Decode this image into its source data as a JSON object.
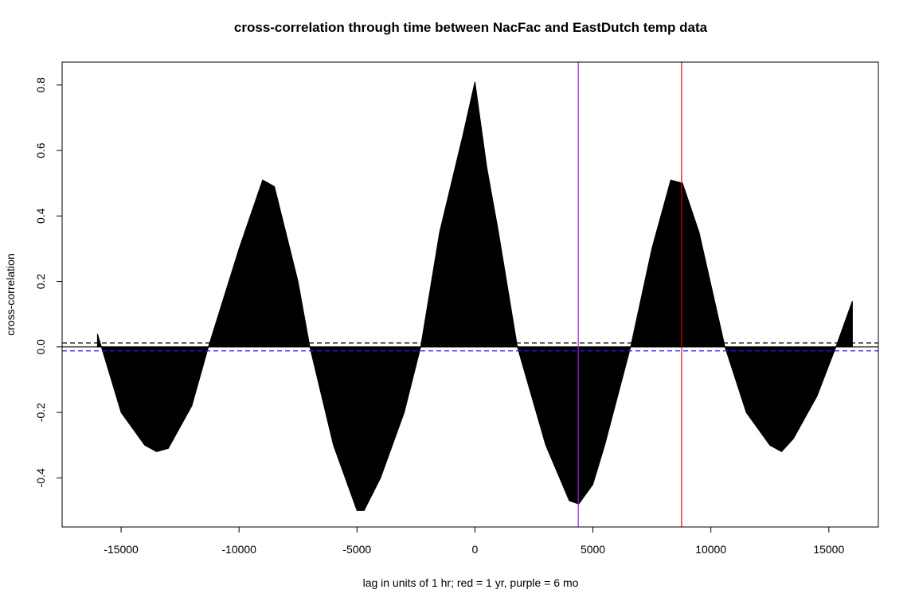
{
  "chart_data": {
    "type": "bar",
    "title": "cross-correlation through time between NacFac and EastDutch temp data",
    "xlabel": "lag in units of 1 hr; red = 1 yr, purple = 6 mo",
    "ylabel": "cross-correlation",
    "xlim": [
      -17500,
      17100
    ],
    "ylim": [
      -0.55,
      0.87
    ],
    "x_ticks": [
      -15000,
      -10000,
      -5000,
      0,
      5000,
      10000,
      15000
    ],
    "x_tick_labels": [
      "-15000",
      "-10000",
      "-5000",
      "0",
      "5000",
      "10000",
      "15000"
    ],
    "y_ticks": [
      -0.4,
      -0.2,
      0.0,
      0.2,
      0.4,
      0.6,
      0.8
    ],
    "y_tick_labels": [
      "-0.4",
      "-0.2",
      "0.0",
      "0.2",
      "0.4",
      "0.6",
      "0.8"
    ],
    "grid": false,
    "series": [
      {
        "x": [
          -16000,
          -15000,
          -14000,
          -13500,
          -13000,
          -12000,
          -11300,
          -10000,
          -9000,
          -8500,
          -7500,
          -7000,
          -6000,
          -5000,
          -4700,
          -4000,
          -3000,
          -2300,
          -1500,
          -500,
          0,
          500,
          1000,
          1800,
          3000,
          4000,
          4400,
          5000,
          5500,
          6600,
          7500,
          8300,
          8800,
          9500,
          10600,
          11500,
          12500,
          13000,
          13500,
          14500,
          15300,
          16000
        ],
        "values": [
          0.04,
          -0.2,
          -0.3,
          -0.32,
          -0.31,
          -0.18,
          0.0,
          0.3,
          0.51,
          0.49,
          0.2,
          0.0,
          -0.3,
          -0.5,
          -0.5,
          -0.4,
          -0.2,
          0.0,
          0.35,
          0.65,
          0.81,
          0.55,
          0.35,
          0.0,
          -0.3,
          -0.47,
          -0.48,
          -0.42,
          -0.3,
          0.0,
          0.3,
          0.51,
          0.5,
          0.35,
          0.0,
          -0.2,
          -0.3,
          -0.32,
          -0.28,
          -0.15,
          0.0,
          0.14
        ]
      }
    ],
    "hlines": [
      {
        "y": 0.0,
        "color": "#000000",
        "style": "solid"
      },
      {
        "y": 0.012,
        "color": "#000000",
        "style": "dashed"
      },
      {
        "y": -0.012,
        "color": "#1a1aff",
        "style": "dashed"
      }
    ],
    "vlines": [
      {
        "x": 4380,
        "color": "#a020f0"
      },
      {
        "x": 8760,
        "color": "#e00000"
      }
    ]
  }
}
